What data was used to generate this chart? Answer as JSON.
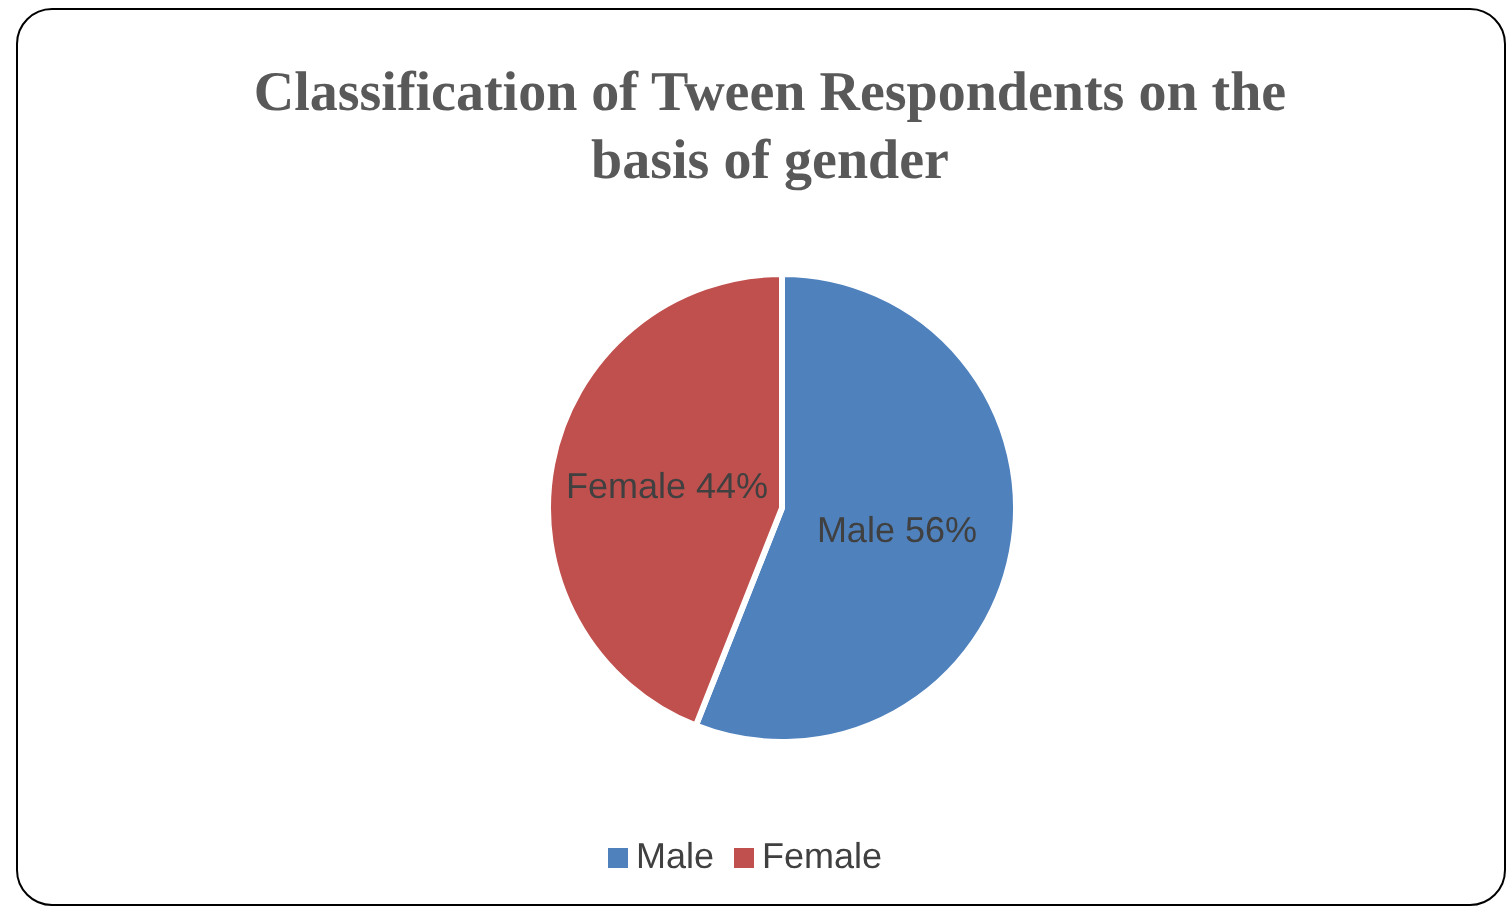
{
  "chart_data": {
    "type": "pie",
    "title": "Classification of Tween Respondents on the basis of gender",
    "categories": [
      "Male",
      "Female"
    ],
    "values": [
      56,
      44
    ],
    "colors": [
      "#4f81bd",
      "#c0504d"
    ],
    "value_labels": [
      "Male 56%",
      "Female 44%"
    ],
    "legend": "bottom"
  }
}
